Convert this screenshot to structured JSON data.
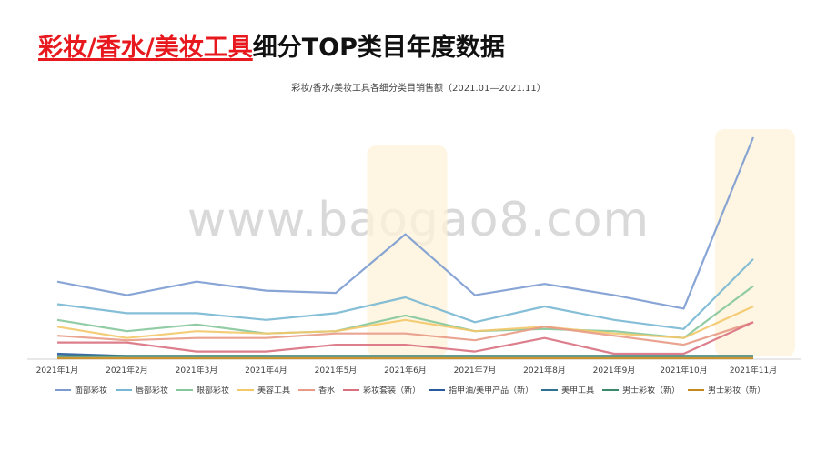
{
  "page": {
    "title_highlight": "彩妆/香水/美妆工具",
    "title_rest": "细分TOP类目年度数据",
    "watermark": "www.baogao8.com"
  },
  "chart_data": {
    "type": "line",
    "title": "彩妆/香水/美妆工具各细分类目销售额（2021.01—2021.11）",
    "categories": [
      "2021年1月",
      "2021年2月",
      "2021年3月",
      "2021年4月",
      "2021年5月",
      "2021年6月",
      "2021年7月",
      "2021年8月",
      "2021年9月",
      "2021年10月",
      "2021年11月"
    ],
    "ylim": [
      0,
      100
    ],
    "grid": false,
    "legend_placement": "bottom",
    "highlighted_categories": [
      "2021年6月",
      "2021年11月"
    ],
    "series": [
      {
        "name": "面部彩妆",
        "color": "#7b9bd0",
        "values": [
          34,
          28,
          34,
          30,
          29,
          55,
          28,
          33,
          28,
          22,
          98
        ]
      },
      {
        "name": "唇部彩妆",
        "color": "#78b7d3",
        "values": [
          24,
          20,
          20,
          17,
          20,
          27,
          16,
          23,
          17,
          13,
          44
        ]
      },
      {
        "name": "眼部彩妆",
        "color": "#85c69b",
        "values": [
          17,
          12,
          15,
          11,
          12,
          19,
          12,
          13,
          12,
          9,
          32
        ]
      },
      {
        "name": "美容工具",
        "color": "#f3c86a",
        "values": [
          14,
          9,
          12,
          11,
          12,
          17,
          12,
          14,
          11,
          9,
          23
        ]
      },
      {
        "name": "香水",
        "color": "#e89a86",
        "values": [
          10,
          8,
          9,
          9,
          11,
          11,
          8,
          14,
          10,
          6,
          16
        ]
      },
      {
        "name": "彩妆套装（新）",
        "color": "#d9707f",
        "values": [
          7,
          7,
          3,
          3,
          6,
          6,
          3,
          9,
          2,
          2,
          16
        ]
      },
      {
        "name": "指甲油/美甲产品（新）",
        "color": "#2a5a9e",
        "values": [
          2,
          1,
          1,
          1,
          1,
          1,
          1,
          1,
          1,
          1,
          1
        ]
      },
      {
        "name": "美甲工具",
        "color": "#2f7191",
        "values": [
          1,
          1,
          1,
          1,
          1,
          1,
          1,
          1,
          1,
          1,
          1
        ]
      },
      {
        "name": "男士彩妆（新）",
        "color": "#3a8a6a",
        "values": [
          1,
          1,
          1,
          1,
          1,
          1,
          1,
          1,
          1,
          1,
          1
        ]
      },
      {
        "name": "男士彩妆（新）",
        "color": "#c58a1e",
        "values": [
          0,
          0,
          0,
          0,
          0,
          0,
          0,
          0,
          0,
          0,
          0
        ]
      }
    ]
  }
}
